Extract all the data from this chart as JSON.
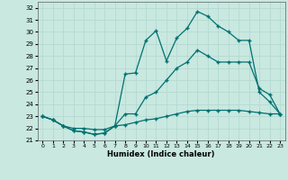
{
  "title": "",
  "xlabel": "Humidex (Indice chaleur)",
  "ylabel": "",
  "bg_color": "#c8e8e0",
  "line_color": "#007070",
  "grid_color": "#b0d8d0",
  "ylim": [
    21,
    32.5
  ],
  "xlim": [
    -0.5,
    23.5
  ],
  "yticks": [
    21,
    22,
    23,
    24,
    25,
    26,
    27,
    28,
    29,
    30,
    31,
    32
  ],
  "xticks": [
    0,
    1,
    2,
    3,
    4,
    5,
    6,
    7,
    8,
    9,
    10,
    11,
    12,
    13,
    14,
    15,
    16,
    17,
    18,
    19,
    20,
    21,
    22,
    23
  ],
  "line1_x": [
    0,
    1,
    2,
    3,
    4,
    5,
    6,
    7,
    8,
    9,
    10,
    11,
    12,
    13,
    14,
    15,
    16,
    17,
    18,
    19,
    20,
    21,
    22,
    23
  ],
  "line1_y": [
    23.0,
    22.7,
    22.2,
    21.8,
    21.7,
    21.5,
    21.6,
    22.2,
    26.5,
    26.6,
    29.3,
    30.1,
    27.6,
    29.5,
    30.3,
    31.7,
    31.3,
    30.5,
    30.0,
    29.3,
    29.3,
    25.0,
    24.2,
    23.2
  ],
  "line2_x": [
    0,
    1,
    2,
    3,
    4,
    5,
    6,
    7,
    8,
    9,
    10,
    11,
    12,
    13,
    14,
    15,
    16,
    17,
    18,
    19,
    20,
    21,
    22,
    23
  ],
  "line2_y": [
    23.0,
    22.7,
    22.2,
    21.8,
    21.7,
    21.5,
    21.6,
    22.2,
    23.2,
    23.2,
    24.6,
    25.0,
    26.0,
    27.0,
    27.5,
    28.5,
    28.0,
    27.5,
    27.5,
    27.5,
    27.5,
    25.3,
    24.8,
    23.2
  ],
  "line3_x": [
    0,
    1,
    2,
    3,
    4,
    5,
    6,
    7,
    8,
    9,
    10,
    11,
    12,
    13,
    14,
    15,
    16,
    17,
    18,
    19,
    20,
    21,
    22,
    23
  ],
  "line3_y": [
    23.0,
    22.7,
    22.2,
    22.0,
    22.0,
    21.9,
    21.9,
    22.2,
    22.3,
    22.5,
    22.7,
    22.8,
    23.0,
    23.2,
    23.4,
    23.5,
    23.5,
    23.5,
    23.5,
    23.5,
    23.4,
    23.3,
    23.2,
    23.2
  ]
}
